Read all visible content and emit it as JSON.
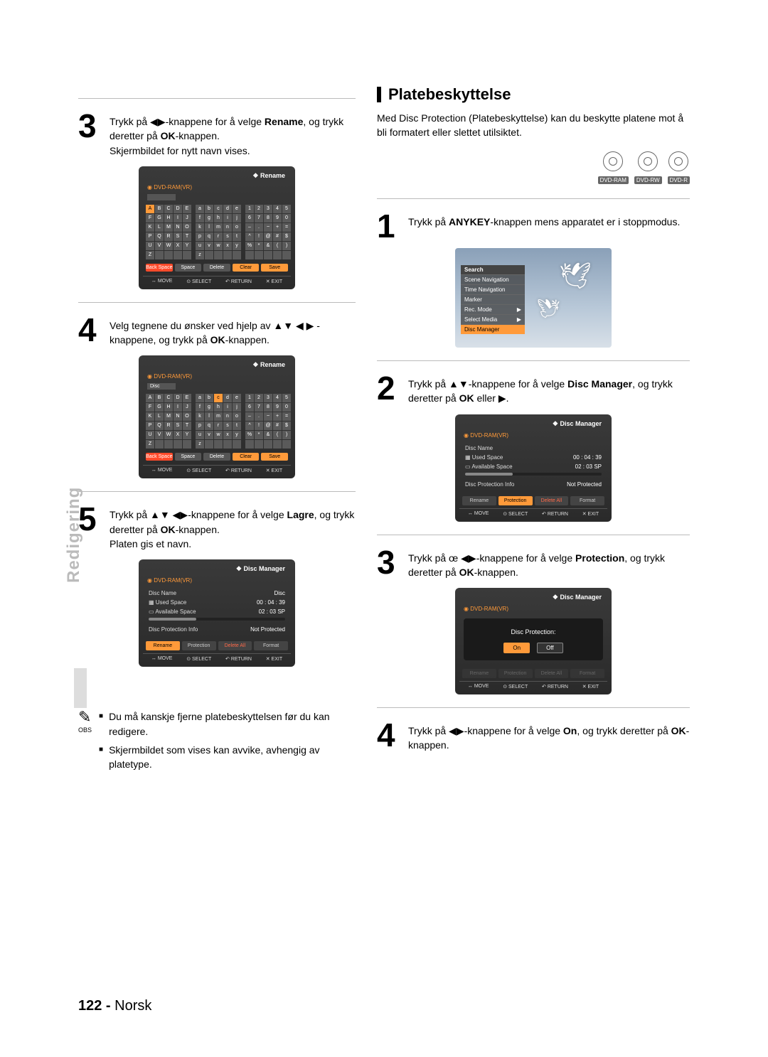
{
  "sidebar_tab": "Redigering",
  "page_number_label": "122 -",
  "page_number_lang": "Norsk",
  "left": {
    "step3": {
      "num": "3",
      "text_pre": "Trykk på ",
      "keys": "◀▶",
      "text_mid": "-knappene for å velge ",
      "bold1": "Rename",
      "text_mid2": ", og trykk deretter på ",
      "bold2": "OK",
      "text_end": "-knappen.\nSkjermbildet for nytt navn vises."
    },
    "step4": {
      "num": "4",
      "text_pre": "Velg tegnene du ønsker ved hjelp av ",
      "keys": "▲▼ ◀ ▶",
      "text_mid": " - knappene, og trykk på ",
      "bold1": "OK",
      "text_end": "-knappen."
    },
    "step5": {
      "num": "5",
      "text_pre": "Trykk på ",
      "keys": "▲▼ ◀▶",
      "text_mid": "-knappene for å velge ",
      "bold1": "Lagre",
      "text_mid2": ", og trykk deretter på ",
      "bold2": "OK",
      "text_end": "-knappen.\nPlaten gis et navn."
    },
    "obs_label": "OBS",
    "obs_items": [
      "Du må kanskje fjerne platebeskyttelsen før du kan redigere.",
      "Skjermbildet som vises kan avvike, avhengig av platetype."
    ]
  },
  "right": {
    "section_title": "Platebeskyttelse",
    "section_desc": "Med Disc Protection (Platebeskyttelse) kan du beskytte platene mot å bli formatert eller slettet utilsiktet.",
    "disc_labels": [
      "DVD-RAM",
      "DVD-RW",
      "DVD-R"
    ],
    "step1": {
      "num": "1",
      "text_pre": "Trykk på ",
      "bold1": "ANYKEY",
      "text_end": "-knappen mens apparatet er i stoppmodus."
    },
    "step2": {
      "num": "2",
      "text_pre": "Trykk på ",
      "keys": "▲▼",
      "text_mid": "-knappene for å velge ",
      "bold1": "Disc Manager",
      "text_mid2": ", og trykk deretter på ",
      "bold2": "OK",
      "text_mid3": " eller ",
      "keys2": "▶",
      "text_end": "."
    },
    "step3": {
      "num": "3",
      "text_pre": "Trykk på œ ",
      "keys": "◀▶",
      "text_mid": "-knappene for å velge ",
      "bold1": "Protection",
      "text_mid2": ", og trykk deretter på ",
      "bold2": "OK",
      "text_end": "-knappen."
    },
    "step4": {
      "num": "4",
      "text_pre": "Trykk på ",
      "keys": "◀▶",
      "text_mid": "-knappene for å velge ",
      "bold1": "On",
      "text_mid2": ", og trykk deretter på ",
      "bold2": "OK",
      "text_end": "-knappen."
    }
  },
  "osd": {
    "rename_title": "Rename",
    "dvd_ram": "DVD-RAM(VR)",
    "disc_tag": "Disc",
    "caps": [
      "A",
      "B",
      "C",
      "D",
      "E",
      "F",
      "G",
      "H",
      "I",
      "J",
      "K",
      "L",
      "M",
      "N",
      "O",
      "P",
      "Q",
      "R",
      "S",
      "T",
      "U",
      "V",
      "W",
      "X",
      "Y",
      "Z",
      "",
      "",
      "",
      ""
    ],
    "lows": [
      "a",
      "b",
      "c",
      "d",
      "e",
      "f",
      "g",
      "h",
      "i",
      "j",
      "k",
      "l",
      "m",
      "n",
      "o",
      "p",
      "q",
      "r",
      "s",
      "t",
      "u",
      "v",
      "w",
      "x",
      "y",
      "z",
      "",
      "",
      "",
      ""
    ],
    "syms": [
      "1",
      "2",
      "3",
      "4",
      "5",
      "6",
      "7",
      "8",
      "9",
      "0",
      "–",
      ".",
      "~",
      "+",
      "=",
      "^",
      "!",
      "@",
      "#",
      "$",
      "%",
      "*",
      "&",
      "(",
      ")",
      "",
      "",
      "",
      "",
      ""
    ],
    "back_space": "Back Space",
    "space": "Space",
    "delete": "Delete",
    "clear": "Clear",
    "save": "Save",
    "move": "MOVE",
    "select": "SELECT",
    "return": "RETURN",
    "exit": "EXIT",
    "dm_title": "Disc Manager",
    "dm_name": "Disc Name",
    "dm_name_v": "Disc",
    "dm_used": "Used Space",
    "dm_used_v": "00 : 04 : 39",
    "dm_avail": "Available Space",
    "dm_avail_v": "02 : 03 SP",
    "dm_prot": "Disc Protection Info",
    "dm_prot_v": "Not Protected",
    "act_rename": "Rename",
    "act_protection": "Protection",
    "act_delete_all": "Delete All",
    "act_format": "Format",
    "dp_title": "Disc Protection:",
    "dp_on": "On",
    "dp_off": "Off",
    "ctx_search": "Search",
    "ctx_items": [
      "Scene Navigation",
      "Time Navigation",
      "Marker",
      "Rec. Mode",
      "Select Media",
      "Disc Manager"
    ]
  },
  "colors": {
    "osd_bg": "#333333",
    "accent": "#ff9a3a",
    "red": "#ff4a2a",
    "divider": "#bbbbbb",
    "muted": "#bbbbbb"
  }
}
